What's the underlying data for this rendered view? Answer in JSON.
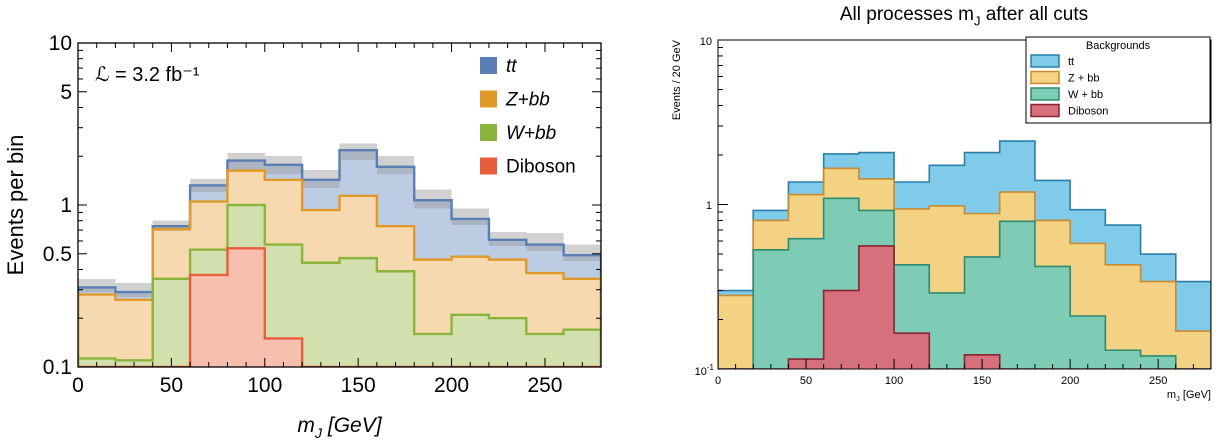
{
  "chart_data": [
    {
      "type": "area",
      "subtype": "stacked-step-histogram",
      "title": "",
      "xlabel": "m_J [GeV]",
      "ylabel": "Events per bin",
      "xlim": [
        0,
        280
      ],
      "ylim": [
        0.1,
        10
      ],
      "yscale": "log",
      "annotation": "ℒ = 3.2 fb⁻¹",
      "legend_position": "top-right",
      "x_ticks": [
        "0",
        "50",
        "100",
        "150",
        "200",
        "250"
      ],
      "y_ticks": [
        "0.1",
        "0.5",
        "1",
        "5",
        "10"
      ],
      "bin_edges": [
        0,
        20,
        40,
        60,
        80,
        100,
        120,
        140,
        160,
        180,
        200,
        220,
        240,
        260,
        280
      ],
      "series": [
        {
          "name": "tt",
          "color": "#5b7fb5",
          "fill": "#bccde3",
          "values": [
            0.31,
            0.29,
            0.74,
            1.32,
            1.88,
            1.77,
            1.43,
            2.18,
            1.72,
            1.07,
            0.82,
            0.61,
            0.57,
            0.49
          ]
        },
        {
          "name": "Z+bb",
          "color": "#e19a2a",
          "fill": "#f6d9ae",
          "values": [
            0.28,
            0.26,
            0.71,
            1.05,
            1.63,
            1.43,
            0.93,
            1.14,
            0.74,
            0.46,
            0.48,
            0.46,
            0.38,
            0.35
          ]
        },
        {
          "name": "W+bb",
          "color": "#8cb43c",
          "fill": "#d2e0ae",
          "values": [
            0.113,
            0.11,
            0.35,
            0.53,
            1.0,
            0.57,
            0.44,
            0.47,
            0.39,
            0.16,
            0.21,
            0.2,
            0.16,
            0.17
          ]
        },
        {
          "name": "Diboson",
          "color": "#ea5d3c",
          "fill": "#f7bfae",
          "values": [
            0.0,
            0.0,
            0.0,
            0.37,
            0.54,
            0.15,
            0.0,
            0.0,
            0.0,
            0.0,
            0.0,
            0.0,
            0.0,
            0.0
          ]
        }
      ],
      "uncertainty_band": {
        "upper": [
          0.35,
          0.33,
          0.8,
          1.45,
          2.1,
          2.0,
          1.65,
          2.4,
          2.0,
          1.25,
          0.95,
          0.68,
          0.67,
          0.57
        ],
        "lower": [
          0.29,
          0.27,
          0.69,
          1.2,
          1.65,
          1.55,
          1.27,
          1.9,
          1.55,
          0.95,
          0.75,
          0.56,
          0.52,
          0.45
        ]
      }
    },
    {
      "type": "area",
      "subtype": "stacked-step-histogram",
      "title": "All processes m_J after all cuts",
      "xlabel": "m_J [GeV]",
      "ylabel": "Events / 20 GeV",
      "xlim": [
        0,
        280
      ],
      "ylim": [
        0.1,
        10
      ],
      "yscale": "log",
      "legend_title": "Backgrounds",
      "legend_position": "top-right",
      "x_ticks": [
        "0",
        "50",
        "100",
        "150",
        "200",
        "250"
      ],
      "bin_edges": [
        0,
        20,
        40,
        60,
        80,
        100,
        120,
        140,
        160,
        180,
        200,
        220,
        240,
        260,
        280
      ],
      "series": [
        {
          "name": "tt",
          "color": "#2a7ea8",
          "fill": "#7fcbe9",
          "values": [
            0.3,
            0.92,
            1.37,
            2.03,
            2.07,
            1.37,
            1.73,
            2.07,
            2.43,
            1.4,
            0.93,
            0.75,
            0.5,
            0.34
          ]
        },
        {
          "name": "Z + bb",
          "color": "#c98a30",
          "fill": "#f4d284",
          "values": [
            0.28,
            0.8,
            1.15,
            1.66,
            1.43,
            0.94,
            0.98,
            0.88,
            1.19,
            0.8,
            0.58,
            0.43,
            0.34,
            0.17
          ]
        },
        {
          "name": "W + bb",
          "color": "#2f8a6e",
          "fill": "#7ecbb6",
          "values": [
            0.0,
            0.53,
            0.62,
            1.09,
            0.92,
            0.43,
            0.29,
            0.48,
            0.79,
            0.42,
            0.21,
            0.13,
            0.12,
            0.0
          ]
        },
        {
          "name": "Diboson",
          "color": "#8a2434",
          "fill": "#d6707c",
          "values": [
            0.0,
            0.0,
            0.115,
            0.3,
            0.56,
            0.165,
            0.0,
            0.122,
            0.0,
            0.0,
            0.0,
            0.0,
            0.0,
            0.0
          ]
        }
      ]
    }
  ]
}
